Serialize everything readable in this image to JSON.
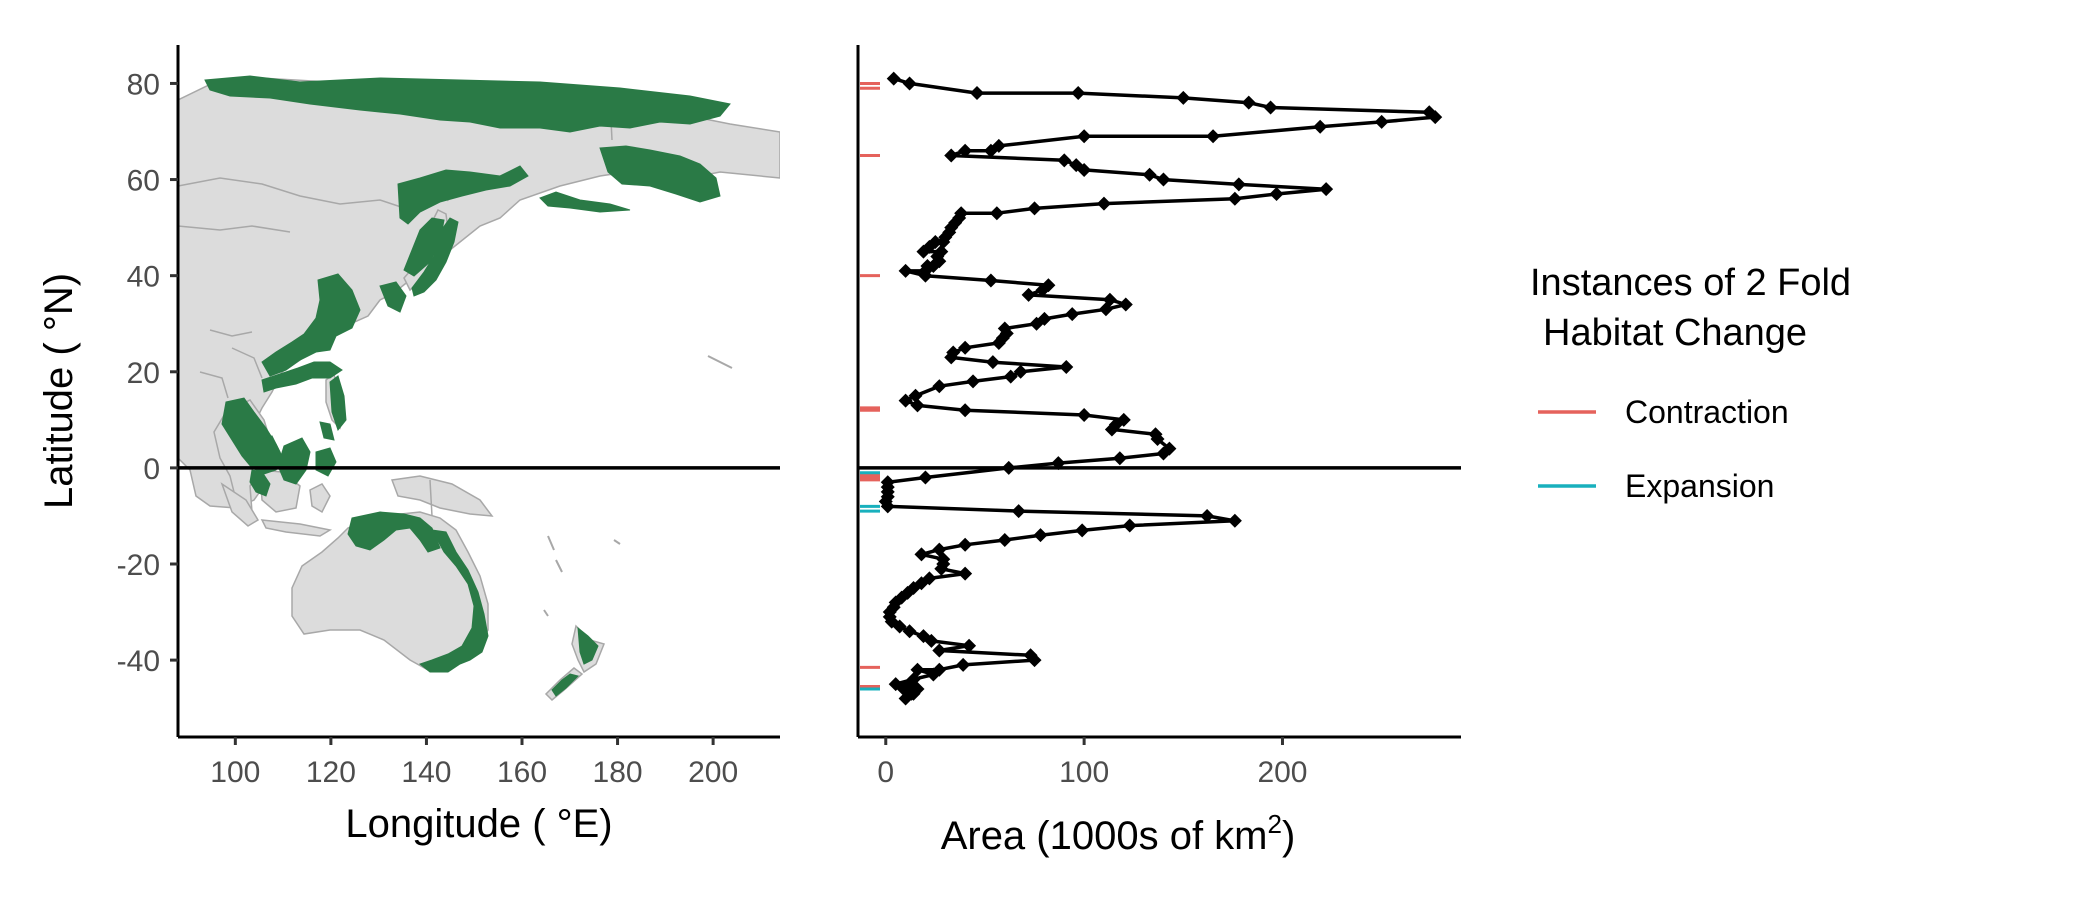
{
  "chart_data": [
    {
      "type": "map",
      "xlabel": "Longitude ( °E)",
      "ylabel": "Latitude ( °N)",
      "xlim": [
        88,
        214
      ],
      "ylim": [
        -56,
        88
      ],
      "x_ticks": [
        "100",
        "120",
        "140",
        "160",
        "180",
        "200"
      ],
      "y_ticks": [
        "80",
        "60",
        "40",
        "20",
        "0",
        "-20",
        "-40"
      ],
      "reference_line": {
        "axis": "y",
        "value": 0
      },
      "colors": {
        "land": "#dcdcdc",
        "border": "#a8a8a8",
        "habitat": "#2a7a46"
      }
    },
    {
      "type": "line",
      "xlabel": "Area (1000s of km",
      "xlabel_superscript": "2",
      "xlabel_suffix": ")",
      "xlim": [
        -14,
        290
      ],
      "ylim": [
        -56,
        88
      ],
      "x_ticks": [
        "0",
        "100",
        "200"
      ],
      "reference_line": {
        "axis": "y",
        "value": 0
      },
      "series": [
        {
          "color": "#000000",
          "marker": "diamond",
          "points": [
            [
              4,
              81
            ],
            [
              12,
              80
            ],
            [
              46,
              78
            ],
            [
              97,
              78
            ],
            [
              150,
              77
            ],
            [
              183,
              76
            ],
            [
              194,
              75
            ],
            [
              274,
              74
            ],
            [
              277,
              73
            ],
            [
              250,
              72
            ],
            [
              219,
              71
            ],
            [
              165,
              69
            ],
            [
              100,
              69
            ],
            [
              57,
              67
            ],
            [
              53,
              66
            ],
            [
              40,
              66
            ],
            [
              33,
              65
            ],
            [
              90,
              64
            ],
            [
              96,
              63
            ],
            [
              100,
              62
            ],
            [
              133,
              61
            ],
            [
              140,
              60
            ],
            [
              178,
              59
            ],
            [
              222,
              58
            ],
            [
              197,
              57
            ],
            [
              176,
              56
            ],
            [
              110,
              55
            ],
            [
              75,
              54
            ],
            [
              56,
              53
            ],
            [
              38,
              53
            ],
            [
              37,
              52
            ],
            [
              35,
              51
            ],
            [
              33,
              50
            ],
            [
              32,
              49
            ],
            [
              30,
              48
            ],
            [
              29,
              47
            ],
            [
              25,
              47
            ],
            [
              22,
              46
            ],
            [
              19,
              45
            ],
            [
              28,
              45
            ],
            [
              26,
              44
            ],
            [
              27,
              43
            ],
            [
              24,
              42
            ],
            [
              21,
              42
            ],
            [
              20,
              41
            ],
            [
              10,
              41
            ],
            [
              20,
              40
            ],
            [
              53,
              39
            ],
            [
              82,
              38
            ],
            [
              79,
              37
            ],
            [
              72,
              36
            ],
            [
              113,
              35
            ],
            [
              121,
              34
            ],
            [
              111,
              33
            ],
            [
              94,
              32
            ],
            [
              80,
              31
            ],
            [
              76,
              30
            ],
            [
              60,
              29
            ],
            [
              61,
              28
            ],
            [
              59,
              27
            ],
            [
              57,
              26
            ],
            [
              40,
              25
            ],
            [
              34,
              24
            ],
            [
              33,
              23
            ],
            [
              54,
              22
            ],
            [
              91,
              21
            ],
            [
              68,
              20
            ],
            [
              63,
              19
            ],
            [
              44,
              18
            ],
            [
              27,
              17
            ],
            [
              15,
              15
            ],
            [
              10,
              14
            ],
            [
              16,
              13
            ],
            [
              40,
              12
            ],
            [
              100,
              11
            ],
            [
              120,
              10
            ],
            [
              116,
              9
            ],
            [
              114,
              8
            ],
            [
              136,
              7
            ],
            [
              137,
              6
            ],
            [
              143,
              4
            ],
            [
              140,
              3
            ],
            [
              118,
              2
            ],
            [
              87,
              1
            ],
            [
              62,
              0
            ],
            [
              20,
              -2
            ],
            [
              1,
              -3
            ],
            [
              1,
              -4
            ],
            [
              1,
              -5
            ],
            [
              1,
              -6
            ],
            [
              0,
              -7
            ],
            [
              1,
              -8
            ],
            [
              67,
              -9
            ],
            [
              162,
              -10
            ],
            [
              176,
              -11
            ],
            [
              123,
              -12
            ],
            [
              99,
              -13
            ],
            [
              78,
              -14
            ],
            [
              60,
              -15
            ],
            [
              40,
              -16
            ],
            [
              27,
              -17
            ],
            [
              18,
              -18
            ],
            [
              29,
              -19
            ],
            [
              29,
              -20
            ],
            [
              28,
              -21
            ],
            [
              40,
              -22
            ],
            [
              22,
              -23
            ],
            [
              18,
              -24
            ],
            [
              14,
              -25
            ],
            [
              11,
              -26
            ],
            [
              8,
              -27
            ],
            [
              5,
              -28
            ],
            [
              4,
              -29
            ],
            [
              2,
              -30
            ],
            [
              2,
              -31
            ],
            [
              3,
              -32
            ],
            [
              7,
              -33
            ],
            [
              12,
              -34
            ],
            [
              19,
              -35
            ],
            [
              23,
              -36
            ],
            [
              42,
              -37
            ],
            [
              27,
              -38
            ],
            [
              73,
              -39
            ],
            [
              75,
              -40
            ],
            [
              39,
              -41
            ],
            [
              27,
              -42
            ],
            [
              16,
              -42
            ],
            [
              24,
              -43
            ],
            [
              14,
              -44
            ],
            [
              5,
              -45
            ],
            [
              9,
              -46
            ],
            [
              13,
              -47
            ],
            [
              10,
              -48
            ],
            [
              14,
              -47
            ],
            [
              16,
              -46
            ],
            [
              12,
              -45
            ]
          ]
        }
      ],
      "rugs": [
        {
          "name": "Contraction",
          "color": "#e5625c",
          "lats": [
            80,
            79,
            65,
            40,
            12.5,
            12,
            -1.5,
            -2,
            -2.5,
            -41.5,
            -45.5
          ]
        },
        {
          "name": "Expansion",
          "color": "#18b0bd",
          "lats": [
            -1,
            -8,
            -9,
            -46
          ]
        }
      ]
    }
  ],
  "legend": {
    "title_line1": "Instances of 2 Fold",
    "title_line2": "Habitat Change",
    "items": [
      {
        "label": "Contraction",
        "color": "#e5625c"
      },
      {
        "label": "Expansion",
        "color": "#18b0bd"
      }
    ]
  }
}
